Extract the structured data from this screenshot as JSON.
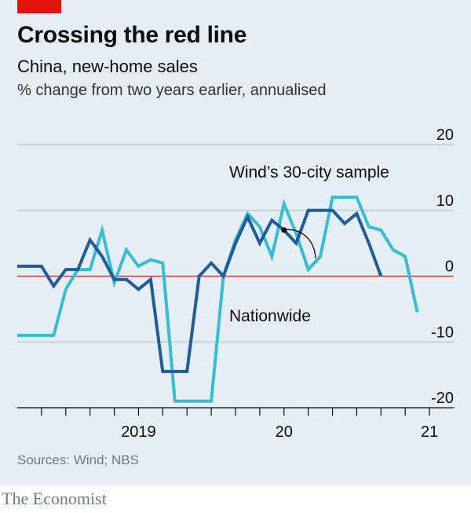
{
  "header": {
    "title": "Crossing the red line",
    "subtitle": "China, new-home sales",
    "units": "% change from two years earlier, annualised"
  },
  "footer": {
    "source": "Sources: Wind; NBS",
    "brand": "The Economist"
  },
  "chart_data": {
    "type": "line",
    "ylim": [
      -20,
      20
    ],
    "yticks": [
      20,
      10,
      0,
      -10,
      -20
    ],
    "ytick_labels": [
      "20",
      "10",
      "0",
      "-10",
      "-20"
    ],
    "xlim": [
      "2018-09",
      "2021-09"
    ],
    "xtick_labels": [
      "2019",
      "20",
      "21"
    ],
    "xtick_label_dates": [
      "2019-07",
      "2020-07",
      "2021-07"
    ],
    "grid": true,
    "zero_line_color": "#e3120b",
    "annotations": [
      {
        "text": "Wind’s 30-city sample",
        "series": "Wind’s 30-city sample"
      },
      {
        "text": "Nationwide",
        "series": "Nationwide",
        "date": "2020-07"
      }
    ],
    "series": [
      {
        "name": "Wind’s 30-city sample",
        "color": "#36bdd3",
        "points": [
          [
            "2018-09",
            -9
          ],
          [
            "2018-10",
            -9
          ],
          [
            "2018-11",
            -9
          ],
          [
            "2018-12",
            -9
          ],
          [
            "2019-01",
            -2
          ],
          [
            "2019-02",
            1
          ],
          [
            "2019-03",
            1
          ],
          [
            "2019-04",
            7
          ],
          [
            "2019-05",
            -1
          ],
          [
            "2019-06",
            4
          ],
          [
            "2019-07",
            1.5
          ],
          [
            "2019-08",
            2.5
          ],
          [
            "2019-09",
            2
          ],
          [
            "2019-10",
            -19
          ],
          [
            "2019-11",
            -19
          ],
          [
            "2019-12",
            -19
          ],
          [
            "2020-01",
            -19
          ],
          [
            "2020-02",
            0
          ],
          [
            "2020-03",
            5.5
          ],
          [
            "2020-04",
            9.5
          ],
          [
            "2020-05",
            7.5
          ],
          [
            "2020-06",
            3
          ],
          [
            "2020-07",
            11
          ],
          [
            "2020-08",
            6.5
          ],
          [
            "2020-09",
            1
          ],
          [
            "2020-10",
            3
          ],
          [
            "2020-11",
            12
          ],
          [
            "2020-12",
            12
          ],
          [
            "2021-01",
            12
          ],
          [
            "2021-02",
            7.5
          ],
          [
            "2021-03",
            7
          ],
          [
            "2021-04",
            4
          ],
          [
            "2021-05",
            3
          ],
          [
            "2021-06",
            -5.5
          ]
        ]
      },
      {
        "name": "Nationwide",
        "color": "#1f5c99",
        "points": [
          [
            "2018-09",
            1.5
          ],
          [
            "2018-10",
            1.5
          ],
          [
            "2018-11",
            1.5
          ],
          [
            "2018-12",
            -1.5
          ],
          [
            "2019-01",
            1
          ],
          [
            "2019-02",
            1
          ],
          [
            "2019-03",
            5.5
          ],
          [
            "2019-04",
            3
          ],
          [
            "2019-05",
            -0.5
          ],
          [
            "2019-06",
            -0.5
          ],
          [
            "2019-07",
            -2
          ],
          [
            "2019-08",
            -0.5
          ],
          [
            "2019-09",
            -14.5
          ],
          [
            "2019-10",
            -14.5
          ],
          [
            "2019-11",
            -14.5
          ],
          [
            "2019-12",
            0
          ],
          [
            "2020-01",
            2
          ],
          [
            "2020-02",
            0
          ],
          [
            "2020-03",
            5
          ],
          [
            "2020-04",
            9
          ],
          [
            "2020-05",
            5
          ],
          [
            "2020-06",
            8.5
          ],
          [
            "2020-07",
            7
          ],
          [
            "2020-08",
            5
          ],
          [
            "2020-09",
            10
          ],
          [
            "2020-10",
            10
          ],
          [
            "2020-11",
            10
          ],
          [
            "2020-12",
            8
          ],
          [
            "2021-01",
            9.5
          ],
          [
            "2021-02",
            5
          ],
          [
            "2021-03",
            0
          ]
        ]
      }
    ]
  }
}
